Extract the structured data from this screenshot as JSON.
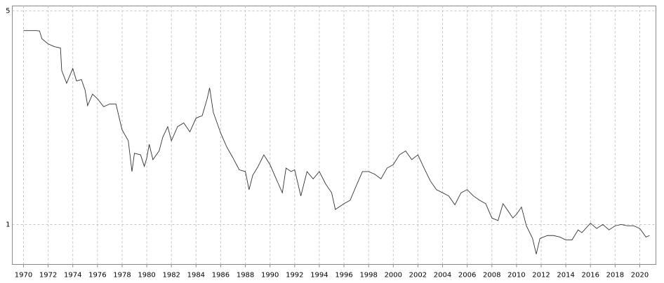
{
  "chart_data": {
    "type": "line",
    "x": [
      1970.0,
      1971.0,
      1971.3,
      1971.5,
      1972.0,
      1972.5,
      1973.0,
      1973.1,
      1973.5,
      1974.0,
      1974.3,
      1974.7,
      1975.0,
      1975.2,
      1975.6,
      1976.0,
      1976.5,
      1977.0,
      1977.5,
      1978.0,
      1978.5,
      1978.8,
      1979.0,
      1979.5,
      1979.8,
      1980.0,
      1980.2,
      1980.5,
      1981.0,
      1981.3,
      1981.7,
      1982.0,
      1982.5,
      1983.0,
      1983.5,
      1984.0,
      1984.5,
      1984.9,
      1985.1,
      1985.4,
      1986.0,
      1986.5,
      1987.0,
      1987.5,
      1988.0,
      1988.3,
      1988.6,
      1989.0,
      1989.5,
      1990.0,
      1990.5,
      1991.0,
      1991.3,
      1991.7,
      1992.0,
      1992.5,
      1993.0,
      1993.5,
      1994.0,
      1994.5,
      1995.0,
      1995.3,
      1996.0,
      1996.5,
      1997.0,
      1997.5,
      1998.0,
      1998.5,
      1999.0,
      1999.5,
      2000.0,
      2000.5,
      2001.0,
      2001.5,
      2002.0,
      2002.5,
      2003.0,
      2003.5,
      2004.0,
      2004.5,
      2005.0,
      2005.5,
      2006.0,
      2006.5,
      2007.0,
      2007.5,
      2008.0,
      2008.5,
      2008.9,
      2009.3,
      2009.7,
      2010.0,
      2010.4,
      2010.8,
      2011.3,
      2011.6,
      2011.9,
      2012.5,
      2013.0,
      2013.5,
      2014.0,
      2014.5,
      2015.0,
      2015.3,
      2016.0,
      2016.5,
      2017.0,
      2017.5,
      2018.0,
      2018.5,
      2019.0,
      2019.5,
      2020.0,
      2020.5,
      2020.8
    ],
    "series": [
      {
        "color": "#333333",
        "values": [
          4.31,
          4.31,
          4.3,
          4.05,
          3.9,
          3.82,
          3.78,
          3.19,
          2.9,
          3.24,
          2.95,
          2.98,
          2.75,
          2.45,
          2.67,
          2.58,
          2.43,
          2.48,
          2.48,
          2.04,
          1.88,
          1.49,
          1.71,
          1.69,
          1.55,
          1.65,
          1.83,
          1.63,
          1.74,
          1.93,
          2.09,
          1.88,
          2.09,
          2.15,
          2.01,
          2.23,
          2.27,
          2.58,
          2.8,
          2.33,
          1.99,
          1.79,
          1.65,
          1.51,
          1.49,
          1.3,
          1.45,
          1.54,
          1.69,
          1.57,
          1.41,
          1.27,
          1.53,
          1.49,
          1.51,
          1.24,
          1.49,
          1.41,
          1.49,
          1.36,
          1.27,
          1.12,
          1.17,
          1.2,
          1.34,
          1.49,
          1.49,
          1.46,
          1.41,
          1.53,
          1.57,
          1.69,
          1.74,
          1.63,
          1.69,
          1.53,
          1.39,
          1.3,
          1.27,
          1.24,
          1.16,
          1.27,
          1.3,
          1.24,
          1.2,
          1.17,
          1.05,
          1.03,
          1.17,
          1.11,
          1.05,
          1.08,
          1.14,
          0.99,
          0.9,
          0.8,
          0.9,
          0.92,
          0.92,
          0.91,
          0.89,
          0.89,
          0.96,
          0.94,
          1.01,
          0.97,
          1.0,
          0.96,
          0.99,
          1.0,
          0.99,
          0.99,
          0.97,
          0.91,
          0.92
        ]
      }
    ],
    "xlim": [
      1969.09,
      2021.31
    ],
    "ylim": [
      0.74,
      5.19
    ],
    "xticks": [
      1970,
      1972,
      1974,
      1976,
      1978,
      1980,
      1982,
      1984,
      1986,
      1988,
      1990,
      1992,
      1994,
      1996,
      1998,
      2000,
      2002,
      2004,
      2006,
      2008,
      2010,
      2012,
      2014,
      2016,
      2018,
      2020
    ],
    "yticks": [
      1,
      5
    ],
    "ylog": true,
    "grid": true
  }
}
